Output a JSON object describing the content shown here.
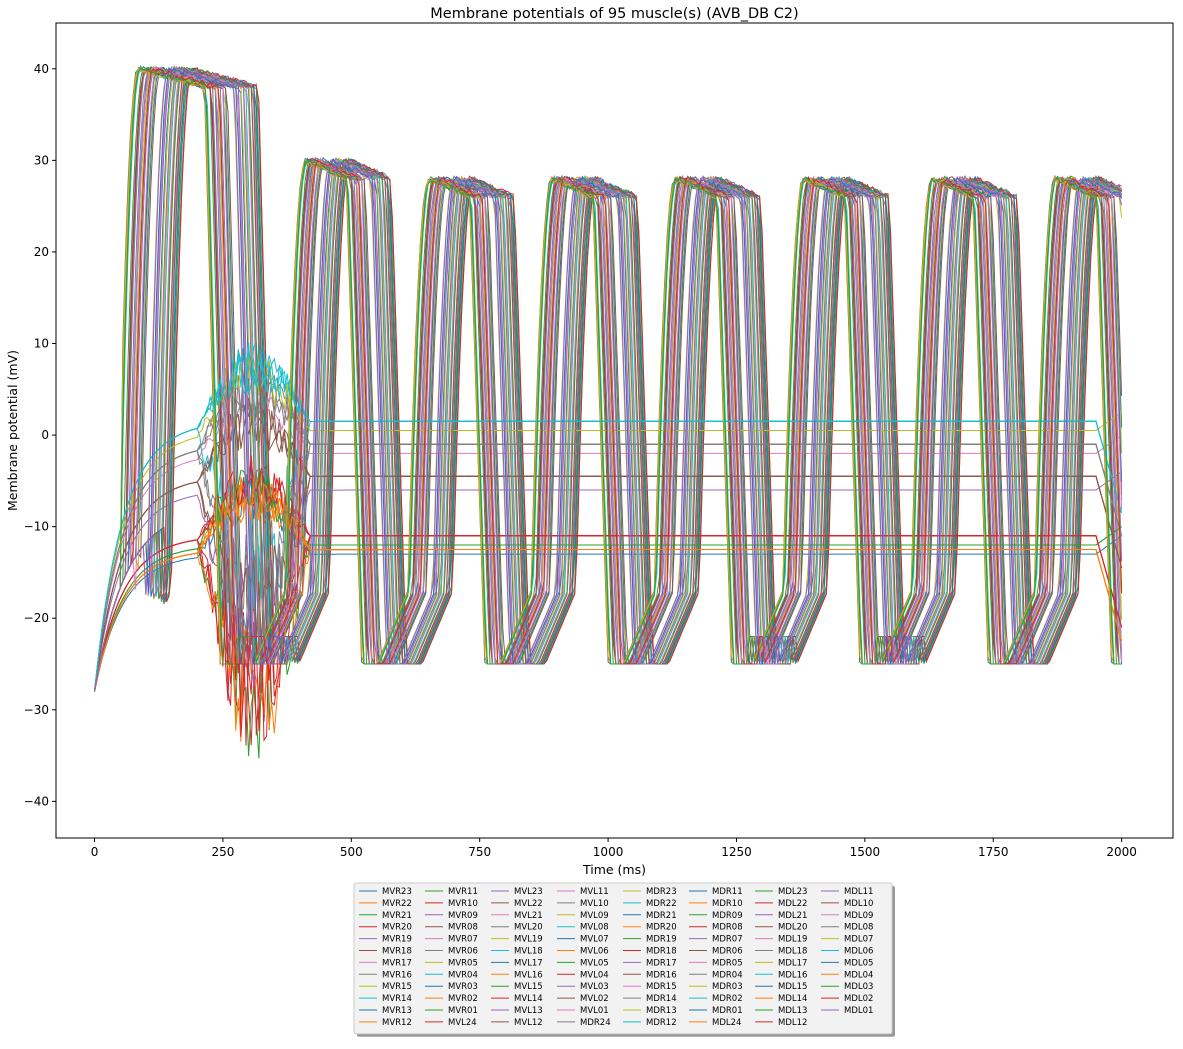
{
  "chart_data": {
    "type": "line",
    "title": "Membrane potentials of 95 muscle(s) (AVB_DB C2)",
    "xlabel": "Time (ms)",
    "ylabel": "Membrane potential (mV)",
    "xlim": [
      -75,
      2100
    ],
    "ylim": [
      -44,
      45
    ],
    "xticks": [
      0,
      250,
      500,
      750,
      1000,
      1250,
      1500,
      1750,
      2000
    ],
    "yticks": [
      -40,
      -30,
      -20,
      -10,
      0,
      10,
      20,
      30,
      40
    ],
    "grid": false,
    "legend_position": "below-center",
    "legend_columns": 8,
    "palette": [
      "#1f77b4",
      "#ff7f0e",
      "#2ca02c",
      "#d62728",
      "#9467bd",
      "#8c564b",
      "#e377c2",
      "#7f7f7f",
      "#bcbd22",
      "#17becf"
    ],
    "series_names": [
      "MVR23",
      "MVR22",
      "MVR21",
      "MVR20",
      "MVR19",
      "MVR18",
      "MVR17",
      "MVR16",
      "MVR15",
      "MVR14",
      "MVR13",
      "MVR12",
      "MVR11",
      "MVR10",
      "MVR09",
      "MVR08",
      "MVR07",
      "MVR06",
      "MVR05",
      "MVR04",
      "MVR03",
      "MVR02",
      "MVR01",
      "MVL24",
      "MVL23",
      "MVL22",
      "MVL21",
      "MVL20",
      "MVL19",
      "MVL18",
      "MVL17",
      "MVL16",
      "MVL15",
      "MVL14",
      "MVL13",
      "MVL12",
      "MVL11",
      "MVL10",
      "MVL09",
      "MVL08",
      "MVL07",
      "MVL06",
      "MVL05",
      "MVL04",
      "MVL03",
      "MVL02",
      "MVL01",
      "MDR24",
      "MDR23",
      "MDR22",
      "MDR21",
      "MDR20",
      "MDR19",
      "MDR18",
      "MDR17",
      "MDR16",
      "MDR15",
      "MDR14",
      "MDR13",
      "MDR12",
      "MDR11",
      "MDR10",
      "MDR09",
      "MDR08",
      "MDR07",
      "MDR06",
      "MDR05",
      "MDR04",
      "MDR03",
      "MDR02",
      "MDR01",
      "MDL24",
      "MDL23",
      "MDL22",
      "MDL21",
      "MDL20",
      "MDL19",
      "MDL18",
      "MDL17",
      "MDL16",
      "MDL15",
      "MDL14",
      "MDL13",
      "MDL12",
      "MDL11",
      "MDL10",
      "MDL09",
      "MDL08",
      "MDL07",
      "MDL06",
      "MDL05",
      "MDL04",
      "MDL03",
      "MDL02",
      "MDL01"
    ],
    "series_profiles": {
      "start_value": -28,
      "end_time": 2000,
      "plateau_groups": [
        {
          "level": -13.0
        },
        {
          "level": -12.5
        },
        {
          "level": -12.0
        },
        {
          "level": -11.0
        },
        {
          "level": -6.0
        },
        {
          "level": -4.5
        },
        {
          "level": -2.0
        },
        {
          "level": -1.0
        },
        {
          "level": 0.5
        },
        {
          "level": 1.5
        }
      ],
      "spike_peaks": [
        40,
        30,
        28,
        28,
        28,
        28,
        28,
        28
      ],
      "spike_onsets": [
        80,
        400,
        640,
        880,
        1120,
        1370,
        1620,
        1860
      ],
      "trough": -25
    }
  }
}
